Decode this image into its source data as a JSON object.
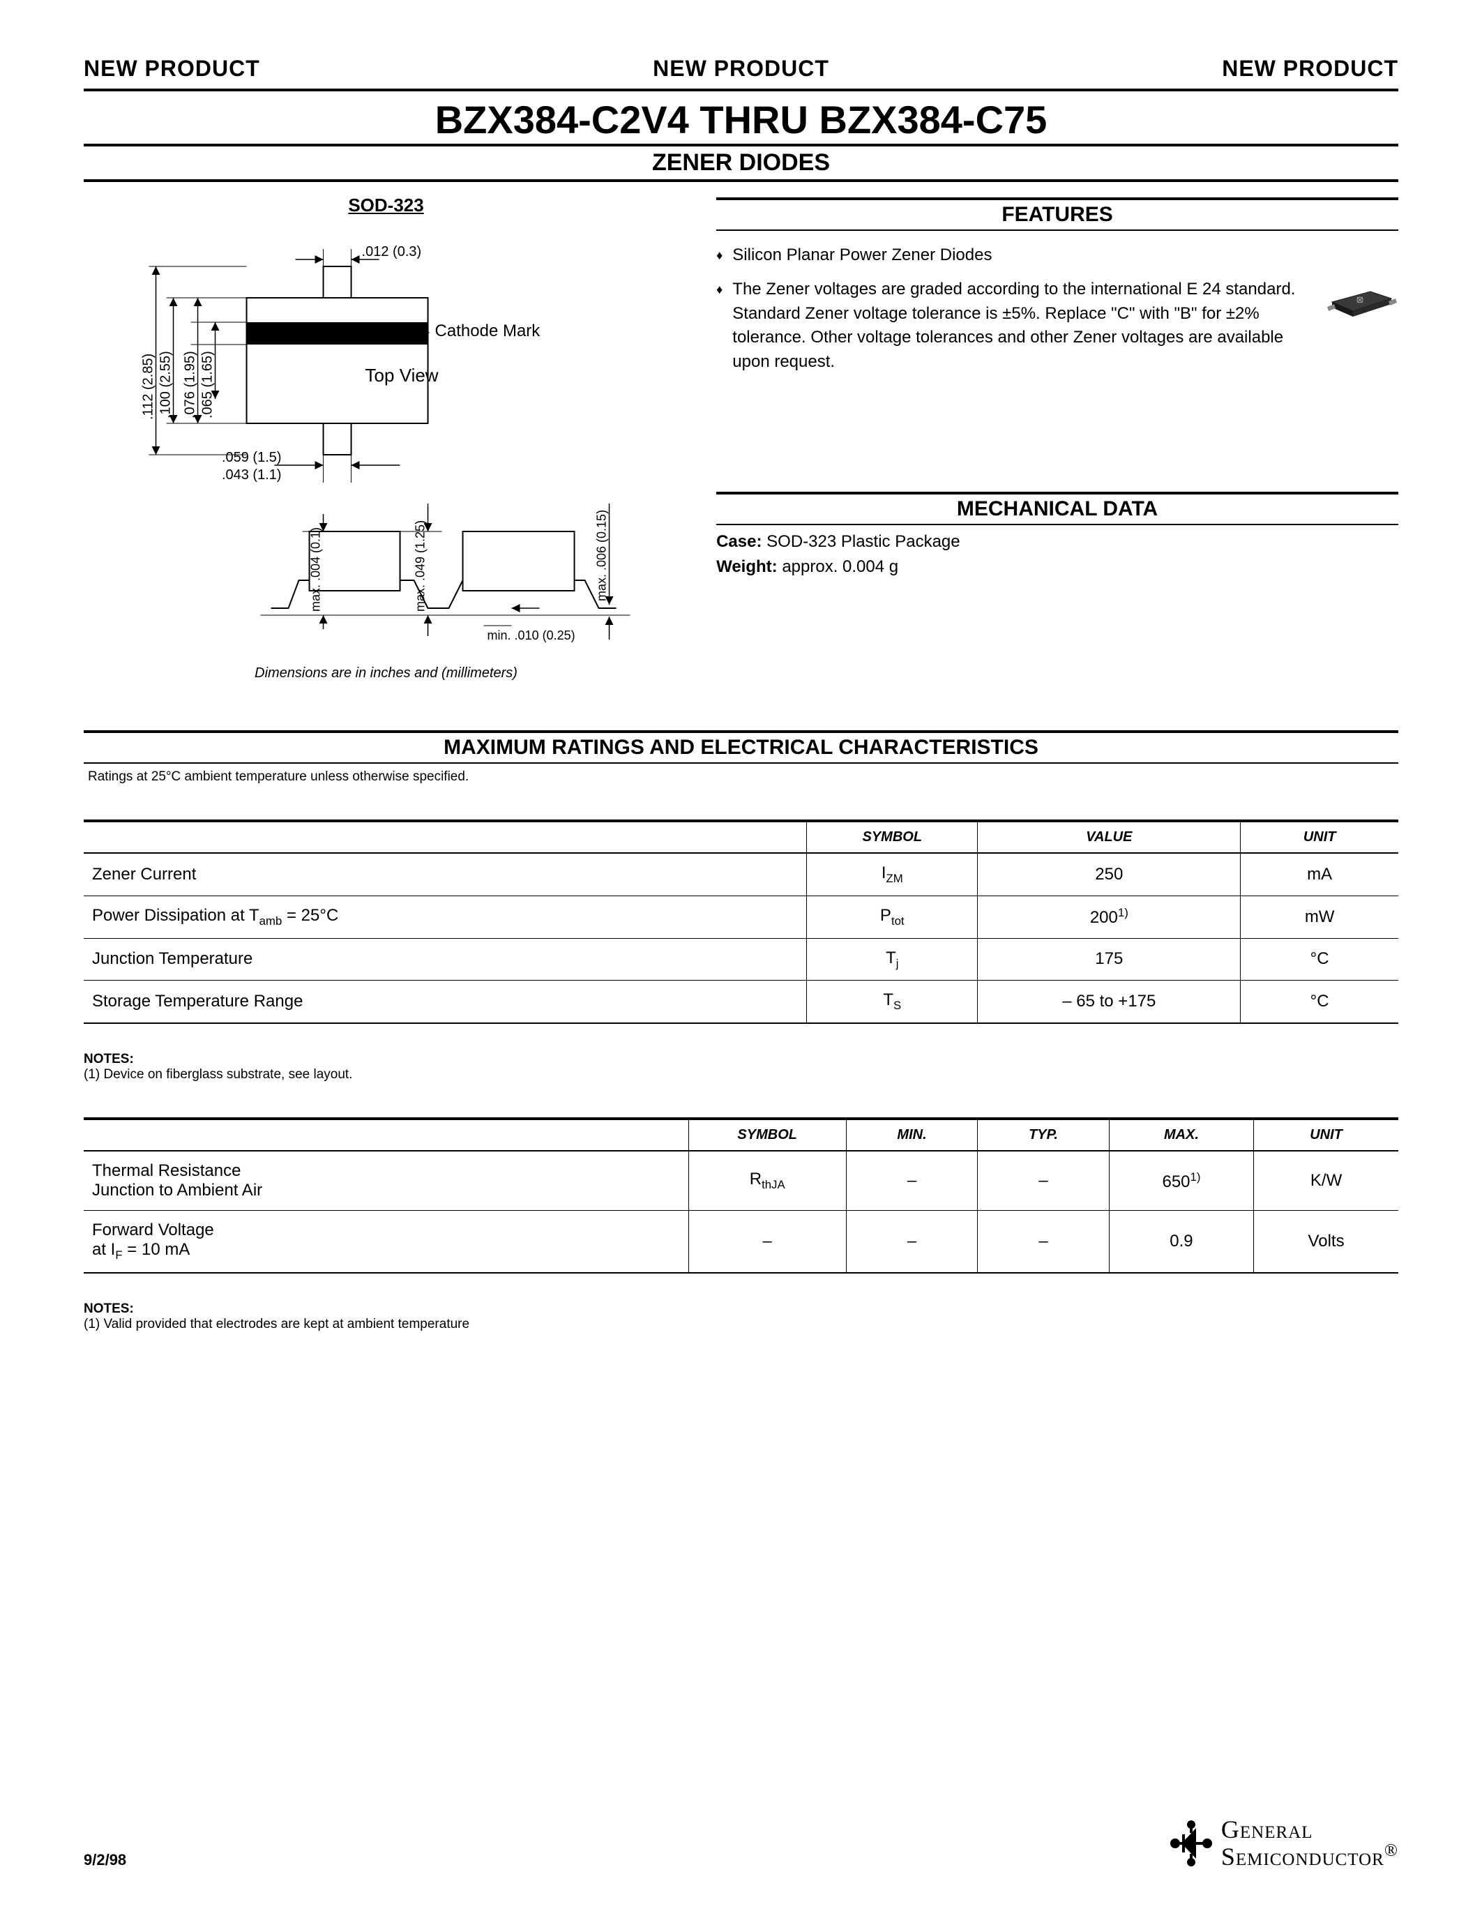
{
  "header": {
    "banner": "NEW PRODUCT",
    "title": "BZX384-C2V4 THRU BZX384-C75",
    "subtitle": "ZENER DIODES"
  },
  "package": {
    "label": "SOD-323",
    "dimensions_note": "Dimensions are in inches and (millimeters)",
    "diagram": {
      "top_view_label": "Top View",
      "cathode_label": "Cathode Mark",
      "dims": {
        "d1": ".012 (0.3)",
        "d2": ".112 (2.85)",
        "d3": ".100 (2.55)",
        "d4": ".076 (1.95)",
        "d5": ".065 (1.65)",
        "d6": ".059 (1.5)",
        "d7": ".043 (1.1)",
        "side_h": "max. .004 (0.1)",
        "side_total": "max. .049 (1.25)",
        "side_lead": "max. .006 (0.15)",
        "side_gap": "min. .010 (0.25)"
      }
    }
  },
  "features": {
    "heading": "FEATURES",
    "items": [
      "Silicon Planar Power Zener Diodes",
      "The Zener voltages are graded according to the international E 24 standard. Standard Zener voltage tolerance is ±5%. Replace \"C\" with \"B\" for ±2% tolerance. Other voltage tolerances and other Zener voltages are available upon request."
    ]
  },
  "mechanical": {
    "heading": "MECHANICAL DATA",
    "case_label": "Case:",
    "case_value": "SOD-323 Plastic Package",
    "weight_label": "Weight:",
    "weight_value": "approx. 0.004 g"
  },
  "ratings": {
    "heading": "MAXIMUM RATINGS AND ELECTRICAL CHARACTERISTICS",
    "condition_note": "Ratings at 25°C ambient temperature unless otherwise specified.",
    "table1": {
      "columns": [
        "",
        "SYMBOL",
        "VALUE",
        "UNIT"
      ],
      "col_widths": [
        "55%",
        "13%",
        "20%",
        "12%"
      ],
      "rows": [
        [
          "Zener Current",
          "I<sub>ZM</sub>",
          "250",
          "mA"
        ],
        [
          "Power Dissipation at T<sub>amb</sub> = 25°C",
          "P<sub>tot</sub>",
          "200<sup>1)</sup>",
          "mW"
        ],
        [
          "Junction Temperature",
          "T<sub>j</sub>",
          "175",
          "°C"
        ],
        [
          "Storage Temperature Range",
          "T<sub>S</sub>",
          "– 65 to +175",
          "°C"
        ]
      ]
    },
    "notes1_head": "NOTES:",
    "notes1_body": "(1) Device on fiberglass substrate, see layout.",
    "table2": {
      "columns": [
        "",
        "SYMBOL",
        "MIN.",
        "TYP.",
        "MAX.",
        "UNIT"
      ],
      "col_widths": [
        "46%",
        "12%",
        "10%",
        "10%",
        "11%",
        "11%"
      ],
      "rows": [
        [
          "Thermal Resistance<br>Junction to Ambient Air",
          "R<sub>thJA</sub>",
          "–",
          "–",
          "650<sup>1)</sup>",
          "K/W"
        ],
        [
          "Forward Voltage<br>at I<sub>F</sub> = 10 mA",
          "–",
          "–",
          "–",
          "0.9",
          "Volts"
        ]
      ]
    },
    "notes2_head": "NOTES:",
    "notes2_body": "(1) Valid provided that electrodes are kept at ambient temperature"
  },
  "footer": {
    "date": "9/2/98",
    "company_line1": "General",
    "company_line2": "Semiconductor",
    "reg": "®"
  },
  "colors": {
    "text": "#000000",
    "bg": "#ffffff",
    "chip_body": "#3a3a3a",
    "chip_edge": "#1a1a1a"
  }
}
